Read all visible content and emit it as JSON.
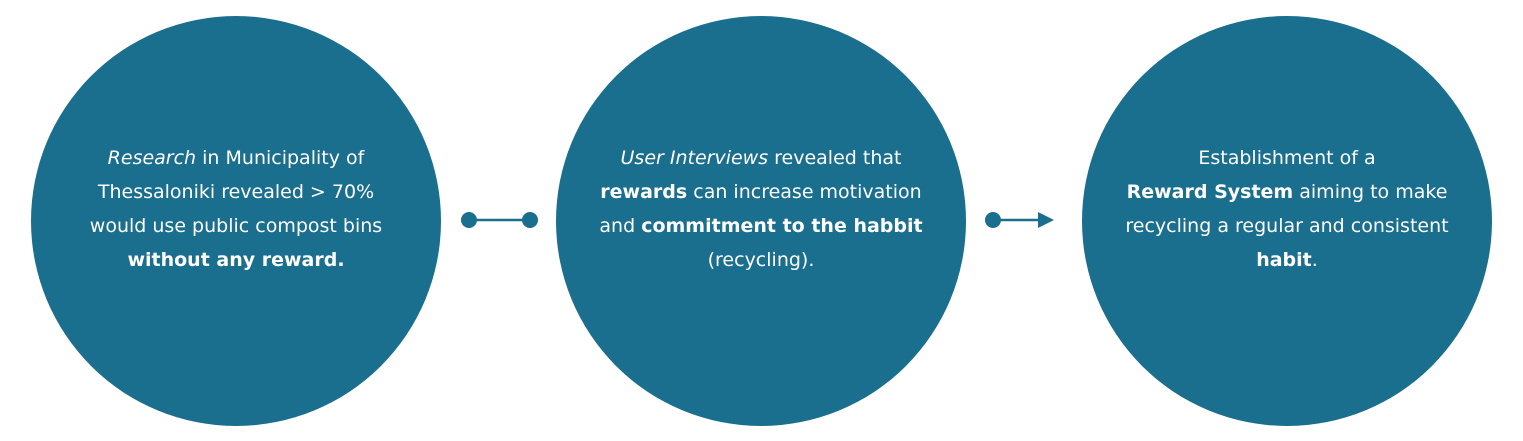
{
  "colors": {
    "circle": "#1a6e8e",
    "connector": "#1a6e8e",
    "text": "#ffffff"
  },
  "nodes": [
    {
      "id": "research",
      "lines": [
        [
          {
            "t": "Research",
            "s": "i"
          },
          {
            "t": " in Municipality of",
            "s": "n"
          }
        ],
        [
          {
            "t": "Thessaloniki revealed > 70%",
            "s": "n"
          }
        ],
        [
          {
            "t": "would use public compost bins",
            "s": "n"
          }
        ],
        [
          {
            "t": "without any reward.",
            "s": "b"
          }
        ]
      ]
    },
    {
      "id": "interviews",
      "lines": [
        [
          {
            "t": "User Interviews",
            "s": "i"
          },
          {
            "t": " revealed that",
            "s": "n"
          }
        ],
        [
          {
            "t": "rewards",
            "s": "b"
          },
          {
            "t": " can increase motivation",
            "s": "n"
          }
        ],
        [
          {
            "t": "and ",
            "s": "n"
          },
          {
            "t": "commitment to the habbit",
            "s": "b"
          }
        ],
        [
          {
            "t": "(recycling).",
            "s": "n"
          }
        ]
      ]
    },
    {
      "id": "reward-system",
      "lines": [
        [
          {
            "t": "Establishment of a",
            "s": "n"
          }
        ],
        [
          {
            "t": "Reward System",
            "s": "b"
          },
          {
            "t": " aiming to make",
            "s": "n"
          }
        ],
        [
          {
            "t": "recycling a regular and consistent",
            "s": "n"
          }
        ],
        [
          {
            "t": "habit",
            "s": "b"
          },
          {
            "t": ".",
            "s": "n"
          }
        ]
      ]
    }
  ],
  "connectors": [
    {
      "from": "research",
      "to": "interviews",
      "start": "dot",
      "end": "dot"
    },
    {
      "from": "interviews",
      "to": "reward-system",
      "start": "dot",
      "end": "arrow"
    }
  ]
}
